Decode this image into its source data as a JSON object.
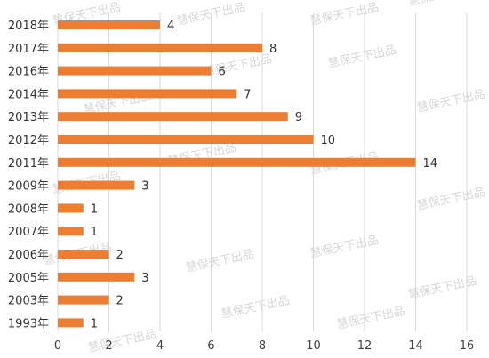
{
  "chart_data": {
    "type": "bar",
    "orientation": "horizontal",
    "categories": [
      "2018年",
      "2017年",
      "2016年",
      "2014年",
      "2013年",
      "2012年",
      "2011年",
      "2009年",
      "2008年",
      "2007年",
      "2006年",
      "2005年",
      "2003年",
      "1993年"
    ],
    "values": [
      4,
      8,
      6,
      7,
      9,
      10,
      14,
      3,
      1,
      1,
      2,
      3,
      2,
      1
    ],
    "xlim": [
      0,
      16
    ],
    "xticks": [
      0,
      2,
      4,
      6,
      8,
      10,
      12,
      14,
      16
    ],
    "grid": "vertical",
    "data_labels": true,
    "bar_color": "#ed7d31"
  },
  "watermark": "慧保天下出品"
}
